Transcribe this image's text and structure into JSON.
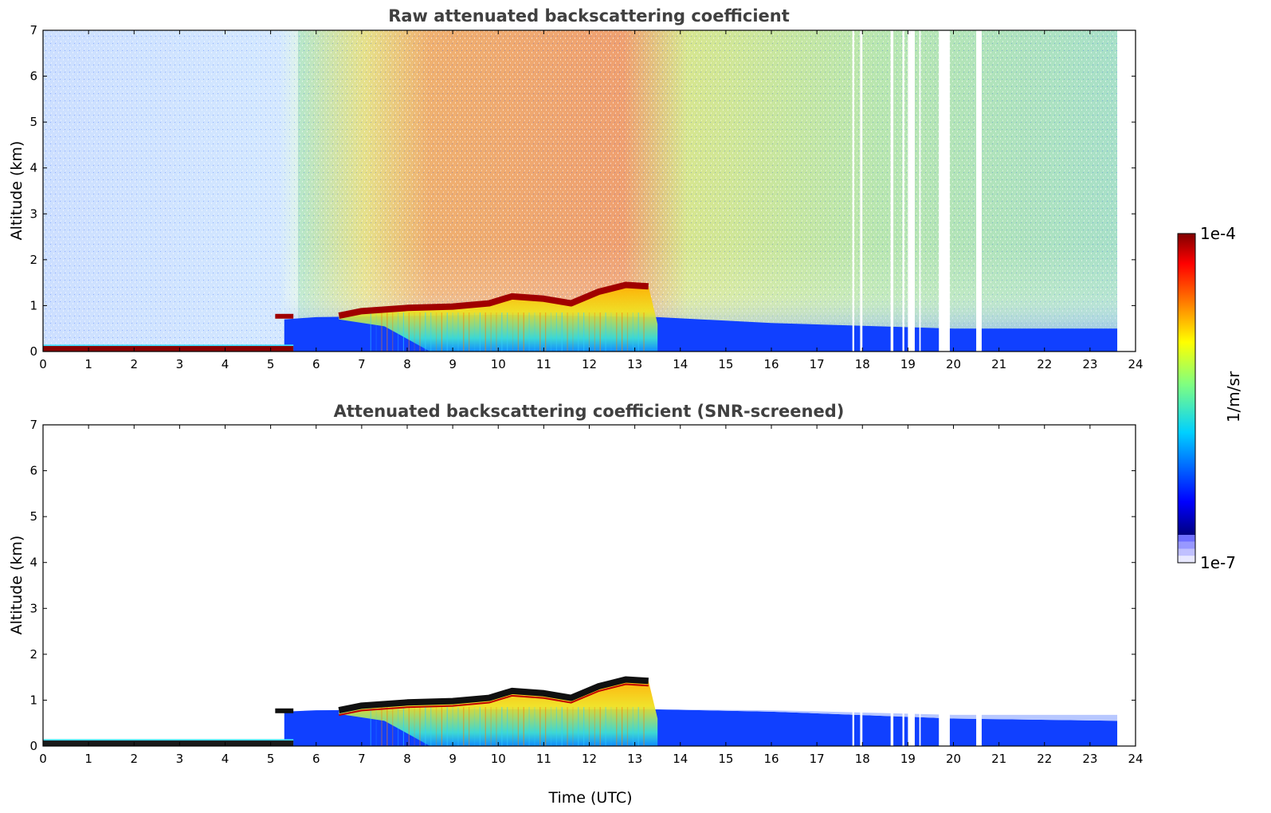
{
  "chart_data": [
    {
      "type": "heatmap",
      "title": "Raw attenuated backscattering coefficient",
      "xlabel": "",
      "ylabel": "Altitude (km)",
      "xlim": [
        0,
        24
      ],
      "ylim": [
        0,
        7
      ],
      "xticks": [
        "0",
        "1",
        "2",
        "3",
        "4",
        "5",
        "6",
        "7",
        "8",
        "9",
        "10",
        "11",
        "12",
        "13",
        "14",
        "15",
        "16",
        "17",
        "18",
        "19",
        "20",
        "21",
        "22",
        "23",
        "24"
      ],
      "yticks": [
        "0",
        "1",
        "2",
        "3",
        "4",
        "5",
        "6",
        "7"
      ],
      "grid": false,
      "data_gaps_utc": [
        [
          17.78,
          17.82
        ],
        [
          17.95,
          18.0
        ],
        [
          18.62,
          18.68
        ],
        [
          18.88,
          18.92
        ],
        [
          19.0,
          19.15
        ],
        [
          19.25,
          19.28
        ],
        [
          19.68,
          19.92
        ],
        [
          20.5,
          20.62
        ],
        [
          23.6,
          24.0
        ]
      ],
      "features": [
        {
          "name": "surface layer",
          "t_start": 0,
          "t_end": 5.5,
          "alt_km": [
            0,
            0.15
          ]
        },
        {
          "name": "boundary layer",
          "t_start": 5.3,
          "t_end": 23.6,
          "alt_km": [
            0,
            0.8
          ]
        },
        {
          "name": "cloud top",
          "t_start": 6.5,
          "t_end": 13.3,
          "alt_km": [
            0.8,
            1.45
          ]
        }
      ]
    },
    {
      "type": "heatmap",
      "title": "Attenuated backscattering coefficient (SNR-screened)",
      "xlabel": "Time (UTC)",
      "ylabel": "Altitude (km)",
      "xlim": [
        0,
        24
      ],
      "ylim": [
        0,
        7
      ],
      "xticks": [
        "0",
        "1",
        "2",
        "3",
        "4",
        "5",
        "6",
        "7",
        "8",
        "9",
        "10",
        "11",
        "12",
        "13",
        "14",
        "15",
        "16",
        "17",
        "18",
        "19",
        "20",
        "21",
        "22",
        "23",
        "24"
      ],
      "yticks": [
        "0",
        "1",
        "2",
        "3",
        "4",
        "5",
        "6",
        "7"
      ],
      "grid": false
    }
  ],
  "colorbar": {
    "label": "1/m/sr",
    "max_label": "1e-4",
    "min_label": "1e-7",
    "colormap": [
      "#000080",
      "#0000ff",
      "#0080ff",
      "#00ffff",
      "#80ff80",
      "#ffff00",
      "#ff8000",
      "#ff0000",
      "#800000"
    ],
    "low_end_colors": [
      "#e8e8ff",
      "#c0c0ff",
      "#9898ff",
      "#6f6fff"
    ]
  }
}
